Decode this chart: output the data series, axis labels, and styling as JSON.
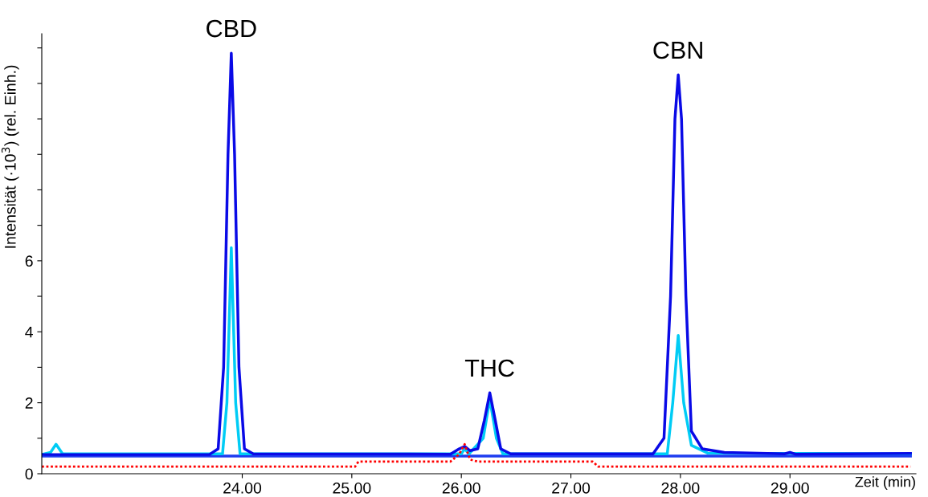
{
  "chart_data": {
    "type": "line",
    "xlabel": "Zeit (min)",
    "ylabel": "Intensität (·10$^{3}$) (rel. Einh.)",
    "xlim": [
      22.17,
      30.15
    ],
    "ylim": [
      0,
      12.4
    ],
    "xticks": [
      {
        "value": 24,
        "label": "24.00"
      },
      {
        "value": 25,
        "label": "25.00"
      },
      {
        "value": 26,
        "label": "26.00"
      },
      {
        "value": 27,
        "label": "27.00"
      },
      {
        "value": 28,
        "label": "28.00"
      },
      {
        "value": 29,
        "label": "29.00"
      }
    ],
    "yticks": [
      0,
      {
        "value": 1,
        "label": null
      },
      2,
      {
        "value": 3,
        "label": null
      },
      4,
      {
        "value": 5,
        "label": null
      },
      6,
      {
        "value": 7,
        "label": null
      },
      {
        "value": 8,
        "label": null
      },
      {
        "value": 9,
        "label": null
      },
      {
        "value": 10,
        "label": null
      },
      {
        "value": 11,
        "label": null
      },
      {
        "value": 12,
        "label": null
      }
    ],
    "grid": false,
    "legend": false,
    "annotations": [
      {
        "text": "CBD",
        "x": 23.9,
        "y": 11.85
      },
      {
        "text": "THC",
        "x": 26.26,
        "y": 2.28
      },
      {
        "text": "CBN",
        "x": 27.98,
        "y": 11.24
      }
    ],
    "series": [
      {
        "color": "#1e3cf0",
        "line_style": "solid",
        "x": [
          22.17,
          30.1
        ],
        "values": [
          0.5,
          0.5
        ]
      },
      {
        "color": "#00ccf5",
        "line_style": "solid",
        "x": [
          22.17,
          22.25,
          22.3,
          22.36,
          23.82,
          23.86,
          23.9,
          23.94,
          23.98,
          26.0,
          26.03,
          26.07,
          26.2,
          26.26,
          26.32,
          26.38,
          27.88,
          27.93,
          27.98,
          28.03,
          28.1,
          28.25,
          30.1
        ],
        "values": [
          0.54,
          0.6,
          0.83,
          0.56,
          0.56,
          2,
          6.37,
          2,
          0.56,
          0.56,
          0.7,
          0.56,
          1.0,
          2.1,
          1.0,
          0.56,
          0.56,
          2,
          3.9,
          2,
          0.8,
          0.58,
          0.56
        ]
      },
      {
        "color": "#0a0ae6",
        "line_style": "solid",
        "x": [
          22.17,
          23.7,
          23.78,
          23.83,
          23.87,
          23.9,
          23.93,
          23.97,
          24.02,
          24.1,
          25.9,
          25.98,
          26.03,
          26.08,
          26.15,
          26.21,
          26.26,
          26.31,
          26.36,
          26.45,
          27.75,
          27.85,
          27.91,
          27.95,
          27.98,
          28.01,
          28.05,
          28.1,
          28.2,
          28.4,
          28.95,
          29.0,
          29.05,
          30.1
        ],
        "values": [
          0.54,
          0.54,
          0.7,
          3,
          9,
          11.85,
          9,
          3,
          0.7,
          0.56,
          0.55,
          0.7,
          0.77,
          0.65,
          0.7,
          1.5,
          2.28,
          1.5,
          0.7,
          0.56,
          0.56,
          1.0,
          5,
          10,
          11.24,
          10,
          5,
          1.2,
          0.7,
          0.6,
          0.56,
          0.6,
          0.55,
          0.57
        ]
      },
      {
        "color": "#ff0000",
        "line_style": "dotted",
        "x": [
          22.17,
          25.03,
          25.06,
          25.9,
          25.98,
          26.03,
          26.08,
          26.15,
          27.2,
          27.25,
          30.1
        ],
        "values": [
          0.2,
          0.2,
          0.34,
          0.34,
          0.55,
          0.83,
          0.4,
          0.34,
          0.34,
          0.2,
          0.2
        ]
      }
    ]
  }
}
